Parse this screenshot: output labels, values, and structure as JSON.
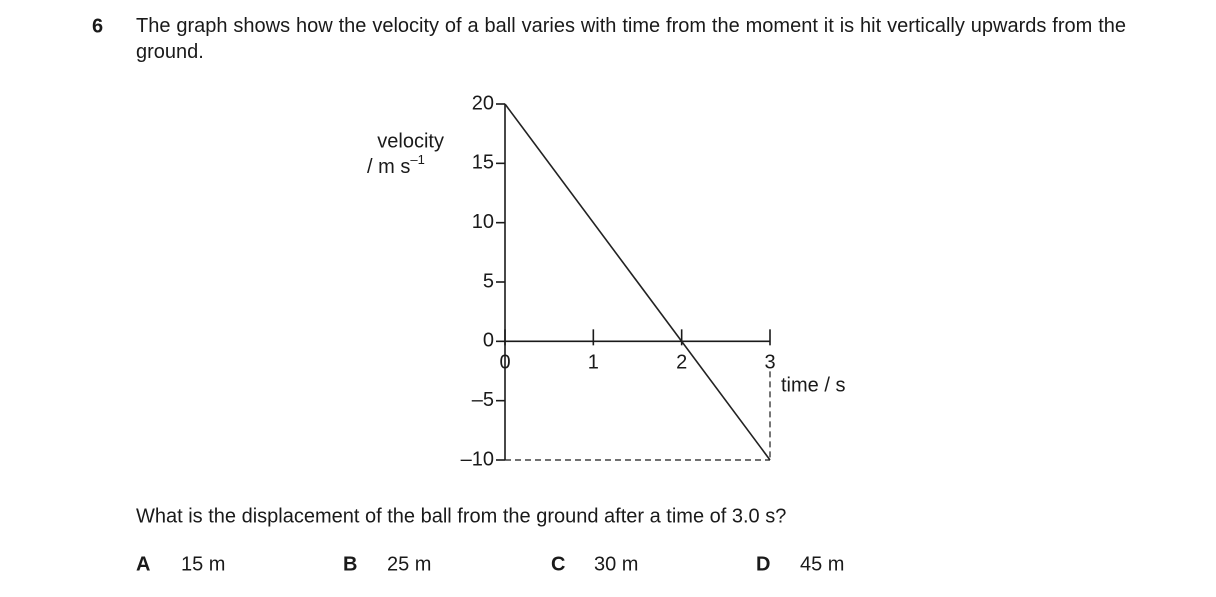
{
  "question_number": "6",
  "stem": "The graph shows how the velocity of a ball varies with time from the moment it is hit vertically upwards from the ground.",
  "chart_data": {
    "type": "line",
    "y_label": "velocity",
    "y_unit": "/ m s",
    "y_unit_exponent": "–1",
    "x_label": "time / s",
    "x": [
      0,
      3
    ],
    "series": [
      {
        "values": [
          20,
          -10
        ],
        "color": "#222222"
      }
    ],
    "xlim": [
      0,
      3
    ],
    "xticks": [
      0,
      1,
      2,
      3
    ],
    "ylim": [
      -10,
      20
    ],
    "yticks": [
      {
        "value": -10,
        "label": "–10"
      },
      {
        "value": -5,
        "label": "–5"
      },
      0,
      5,
      10,
      15,
      20
    ],
    "grid": false
  },
  "question": "What is the displacement of the ball from the ground after a time of 3.0 s?",
  "options": [
    {
      "letter": "A",
      "text": "15 m"
    },
    {
      "letter": "B",
      "text": "25 m"
    },
    {
      "letter": "C",
      "text": "30 m"
    },
    {
      "letter": "D",
      "text": "45 m"
    }
  ]
}
